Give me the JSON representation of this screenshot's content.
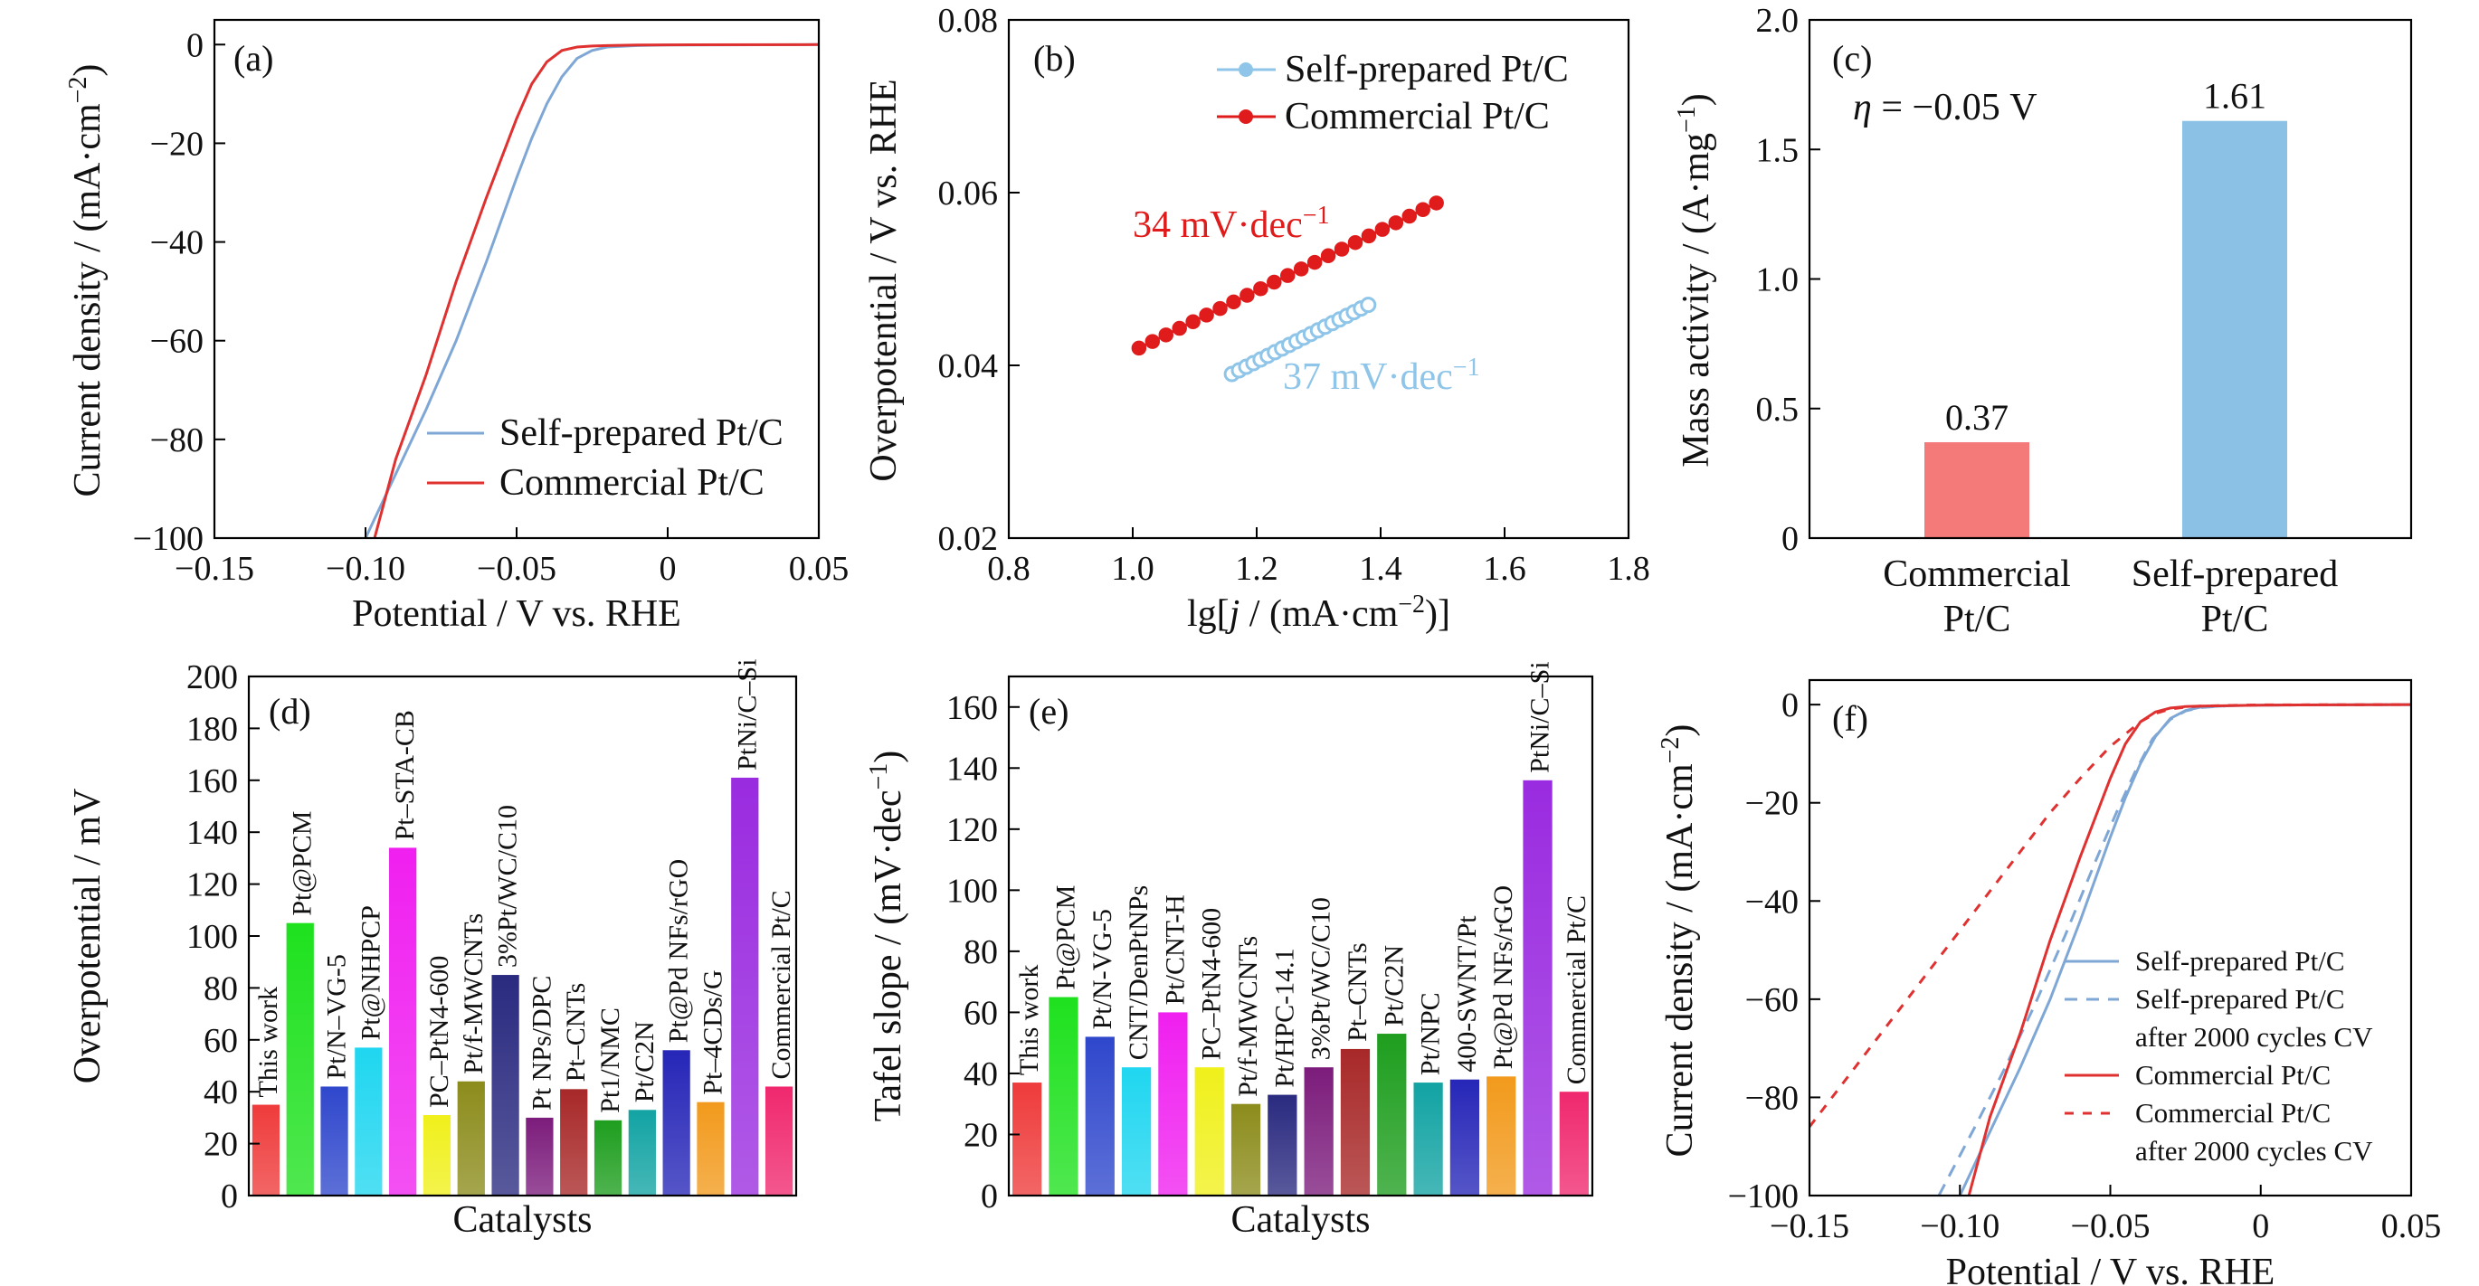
{
  "chart_data": [
    {
      "type": "line",
      "panel": "(a)",
      "xlabel": "Potential / V vs. RHE",
      "ylabel_parts": [
        "Current density / (mA·cm",
        "−2",
        ")"
      ],
      "xlim": [
        -0.15,
        0.05
      ],
      "ylim": [
        -100,
        5
      ],
      "xticks": [
        -0.15,
        -0.1,
        -0.05,
        0,
        0.05
      ],
      "xtick_labels": [
        "−0.15",
        "−0.10",
        "−0.05",
        "0",
        "0.05"
      ],
      "yticks": [
        0,
        -20,
        -40,
        -60,
        -80,
        -100
      ],
      "ytick_labels": [
        "0",
        "−20",
        "−40",
        "−60",
        "−80",
        "−100"
      ],
      "legend_position": "bottom-right",
      "series": [
        {
          "name": "Self-prepared Pt/C",
          "color": "#7fa7d6",
          "x": [
            -0.1,
            -0.09,
            -0.08,
            -0.07,
            -0.06,
            -0.05,
            -0.045,
            -0.04,
            -0.035,
            -0.03,
            -0.025,
            -0.02,
            -0.01,
            0,
            0.05
          ],
          "y": [
            -100,
            -87,
            -74,
            -60,
            -44,
            -27,
            -19,
            -12,
            -6.5,
            -2.8,
            -1.2,
            -0.5,
            -0.2,
            -0.1,
            0
          ]
        },
        {
          "name": "Commercial Pt/C",
          "color": "#e03131",
          "x": [
            -0.097,
            -0.09,
            -0.08,
            -0.07,
            -0.06,
            -0.05,
            -0.045,
            -0.04,
            -0.035,
            -0.03,
            -0.025,
            -0.02,
            -0.01,
            0,
            0.05
          ],
          "y": [
            -100,
            -84,
            -67,
            -48,
            -31,
            -15,
            -8,
            -3.5,
            -1.2,
            -0.5,
            -0.3,
            -0.2,
            -0.1,
            -0.05,
            0
          ]
        }
      ]
    },
    {
      "type": "scatter",
      "panel": "(b)",
      "xlabel_parts": [
        "lg[",
        "j",
        " / (mA·cm",
        "−2",
        ")]"
      ],
      "ylabel": "Overpotential / V vs. RHE",
      "xlim": [
        0.8,
        1.8
      ],
      "ylim": [
        0.02,
        0.08
      ],
      "xticks": [
        0.8,
        1.0,
        1.2,
        1.4,
        1.6,
        1.8
      ],
      "xtick_labels": [
        "0.8",
        "1.0",
        "1.2",
        "1.4",
        "1.6",
        "1.8"
      ],
      "yticks": [
        0.02,
        0.04,
        0.06,
        0.08
      ],
      "ytick_labels": [
        "0.02",
        "0.04",
        "0.06",
        "0.08"
      ],
      "legend_position": "top-right",
      "series": [
        {
          "name": "Self-prepared Pt/C",
          "color": "#8ec5e8",
          "x_range": [
            1.16,
            1.38
          ],
          "y_range": [
            0.039,
            0.047
          ],
          "points": 20,
          "annotation": "37 mV·dec",
          "annotation_sup": "−1"
        },
        {
          "name": "Commercial Pt/C",
          "color": "#e01b1b",
          "x_range": [
            1.01,
            1.49
          ],
          "y_range": [
            0.042,
            0.0588
          ],
          "points": 23,
          "annotation": "34 mV·dec",
          "annotation_sup": "−1"
        }
      ]
    },
    {
      "type": "bar",
      "panel": "(c)",
      "categories": [
        [
          "Commercial",
          "Pt/C"
        ],
        [
          "Self-prepared",
          "Pt/C"
        ]
      ],
      "values": [
        0.37,
        1.61
      ],
      "value_labels": [
        "0.37",
        "1.61"
      ],
      "colors": [
        "#f47a7a",
        "#8cc1e6"
      ],
      "ylabel_parts": [
        "Mass activity / (A·mg",
        "−1",
        ")"
      ],
      "ylim": [
        0,
        2.0
      ],
      "yticks": [
        0,
        0.5,
        1.0,
        1.5,
        2.0
      ],
      "ytick_labels": [
        "0",
        "0.5",
        "1.0",
        "1.5",
        "2.0"
      ],
      "annotation_parts": [
        "η",
        " = −0.05 V"
      ]
    },
    {
      "type": "bar",
      "panel": "(d)",
      "xlabel": "Catalysts",
      "ylabel": "Overpotential / mV",
      "ylim": [
        0,
        200
      ],
      "yticks": [
        0,
        20,
        40,
        60,
        80,
        100,
        120,
        140,
        160,
        180,
        200
      ],
      "categories": [
        "This work",
        "Pt@PCM",
        "Pt/N–VG-5",
        "Pt@NHPCP",
        "Pt–STA-CB",
        "PC–PtN4-600",
        "Pt/f-MWCNTs",
        "3%Pt/WC/C10",
        "Pt NPs/DPC",
        "Pt–CNTs",
        "Pt1/NMC",
        "Pt/C2N",
        "Pt@Pd NFs/rGO",
        "Pt–4CDs/G",
        "PtNi/C–Si",
        "Commercial Pt/C"
      ],
      "values": [
        35,
        105,
        42,
        57,
        134,
        31,
        44,
        85,
        30,
        41,
        29,
        33,
        56,
        36,
        161,
        42
      ],
      "colors": [
        "#ef3b3b",
        "#1ee11e",
        "#2f47cc",
        "#1fd6f0",
        "#f01ff0",
        "#f0f01b",
        "#8c8c1c",
        "#2a2a80",
        "#7c1c7c",
        "#a82828",
        "#1e9e1e",
        "#12a3a3",
        "#2626b8",
        "#f29a1c",
        "#9a2be0",
        "#f0286e"
      ]
    },
    {
      "type": "bar",
      "panel": "(e)",
      "xlabel": "Catalysts",
      "ylabel_parts": [
        "Tafel slope / (mV·dec",
        "−1",
        ")"
      ],
      "ylim": [
        0,
        170
      ],
      "yticks": [
        0,
        20,
        40,
        60,
        80,
        100,
        120,
        140,
        160
      ],
      "categories": [
        "This work",
        "Pt@PCM",
        "Pt/N-VG-5",
        "CNT/DenPtNPs",
        "Pt/CNT-H",
        "PC–PtN4-600",
        "Pt/f-MWCNTs",
        "Pt/HPC-14.1",
        "3%Pt/WC/C10",
        "Pt–CNTs",
        "Pt/C2N",
        "Pt/NPC",
        "400-SWNT/Pt",
        "Pt@Pd NFs/rGO",
        "PtNi/C–Si",
        "Commercial Pt/C"
      ],
      "values": [
        37,
        65,
        52,
        42,
        60,
        42,
        30,
        33,
        42,
        48,
        53,
        37,
        38,
        39,
        136,
        34
      ],
      "colors": [
        "#ef3b3b",
        "#1ee11e",
        "#2f47cc",
        "#1fd6f0",
        "#f01ff0",
        "#f0f01b",
        "#8c8c1c",
        "#2a2a80",
        "#7c1c7c",
        "#a82828",
        "#1e9e1e",
        "#12a3a3",
        "#2626b8",
        "#f29a1c",
        "#9a2be0",
        "#f0286e"
      ]
    },
    {
      "type": "line",
      "panel": "(f)",
      "xlabel": "Potential / V vs. RHE",
      "ylabel_parts": [
        "Current density / (mA·cm",
        "−2",
        ")"
      ],
      "xlim": [
        -0.15,
        0.05
      ],
      "ylim": [
        -100,
        5
      ],
      "xticks": [
        -0.15,
        -0.1,
        -0.05,
        0,
        0.05
      ],
      "xtick_labels": [
        "−0.15",
        "−0.10",
        "−0.05",
        "0",
        "0.05"
      ],
      "yticks": [
        0,
        -20,
        -40,
        -60,
        -80,
        -100
      ],
      "ytick_labels": [
        "0",
        "−20",
        "−40",
        "−60",
        "−80",
        "−100"
      ],
      "legend_position": "bottom-right",
      "series": [
        {
          "name_lines": [
            "Self-prepared Pt/C"
          ],
          "color": "#7fa7d6",
          "dash": "",
          "x": [
            -0.1,
            -0.09,
            -0.08,
            -0.07,
            -0.06,
            -0.05,
            -0.045,
            -0.04,
            -0.035,
            -0.03,
            -0.025,
            -0.02,
            -0.01,
            0,
            0.05
          ],
          "y": [
            -100,
            -87,
            -74,
            -60,
            -44,
            -27,
            -19,
            -12,
            -6.5,
            -2.8,
            -1.2,
            -0.5,
            -0.2,
            -0.1,
            0
          ]
        },
        {
          "name_lines": [
            "Self-prepared Pt/C",
            "after 2000 cycles CV"
          ],
          "color": "#7fa7d6",
          "dash": "14,10",
          "x": [
            -0.107,
            -0.095,
            -0.085,
            -0.075,
            -0.065,
            -0.055,
            -0.048,
            -0.042,
            -0.036,
            -0.03,
            -0.025,
            -0.02,
            -0.01,
            0,
            0.05
          ],
          "y": [
            -100,
            -86,
            -74,
            -61,
            -47,
            -32,
            -22,
            -14,
            -7,
            -3,
            -1.3,
            -0.6,
            -0.2,
            -0.1,
            0
          ]
        },
        {
          "name_lines": [
            "Commercial Pt/C"
          ],
          "color": "#e03131",
          "dash": "",
          "x": [
            -0.097,
            -0.09,
            -0.08,
            -0.07,
            -0.06,
            -0.05,
            -0.045,
            -0.04,
            -0.035,
            -0.03,
            -0.025,
            -0.02,
            -0.01,
            0,
            0.05
          ],
          "y": [
            -100,
            -84,
            -67,
            -48,
            -31,
            -15,
            -8,
            -3.5,
            -1.5,
            -0.7,
            -0.4,
            -0.3,
            -0.2,
            -0.1,
            0
          ]
        },
        {
          "name_lines": [
            "Commercial Pt/C",
            "after 2000 cycles CV"
          ],
          "color": "#e03131",
          "dash": "10,10",
          "x": [
            -0.15,
            -0.14,
            -0.13,
            -0.12,
            -0.11,
            -0.1,
            -0.09,
            -0.08,
            -0.07,
            -0.06,
            -0.05,
            -0.04,
            -0.035,
            -0.03,
            -0.025,
            -0.02,
            -0.01,
            0,
            0.05
          ],
          "y": [
            -86,
            -78,
            -70,
            -62,
            -54,
            -46,
            -38,
            -30,
            -22,
            -15,
            -8.5,
            -3.5,
            -1.8,
            -0.9,
            -0.5,
            -0.3,
            -0.15,
            -0.05,
            0
          ]
        }
      ]
    }
  ]
}
